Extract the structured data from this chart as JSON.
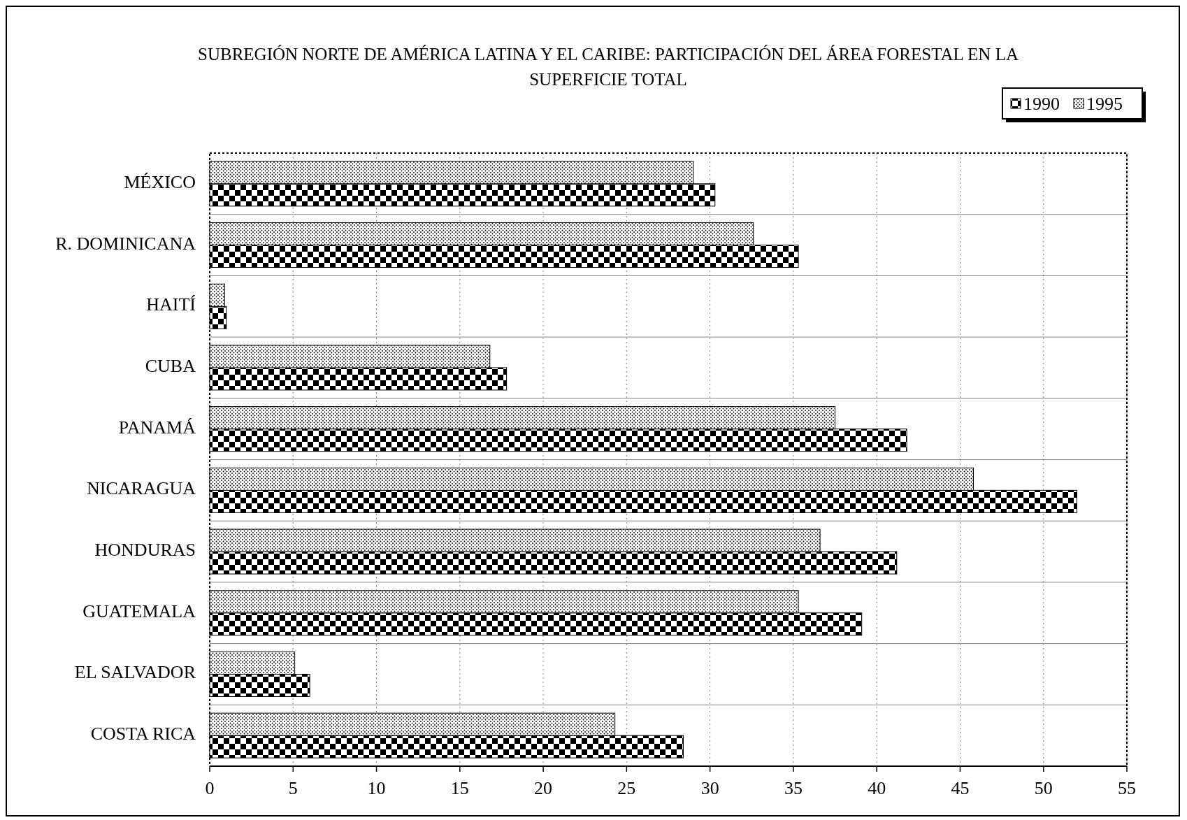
{
  "chart_data": {
    "type": "bar",
    "orientation": "horizontal",
    "title": "SUBREGIÓN NORTE DE AMÉRICA LATINA Y EL CARIBE:  PARTICIPACIÓN DEL ÁREA FORESTAL EN LA SUPERFICIE  TOTAL",
    "categories": [
      "MÉXICO",
      "R. DOMINICANA",
      "HAITÍ",
      "CUBA",
      "PANAMÁ",
      "NICARAGUA",
      "HONDURAS",
      "GUATEMALA",
      "EL SALVADOR",
      "COSTA RICA"
    ],
    "series": [
      {
        "name": "1990",
        "color": "#000000",
        "values": [
          30.3,
          35.3,
          1.0,
          17.8,
          41.8,
          52.0,
          41.2,
          39.1,
          6.0,
          28.4
        ]
      },
      {
        "name": "1995",
        "color": "#000000",
        "values": [
          29.0,
          32.6,
          0.9,
          16.8,
          37.5,
          45.8,
          36.6,
          35.3,
          5.1,
          24.3
        ]
      }
    ],
    "xlim": [
      0,
      55
    ],
    "xticks": [
      0,
      5,
      10,
      15,
      20,
      25,
      30,
      35,
      40,
      45,
      50,
      55
    ],
    "grid": true,
    "legend": "top right"
  }
}
